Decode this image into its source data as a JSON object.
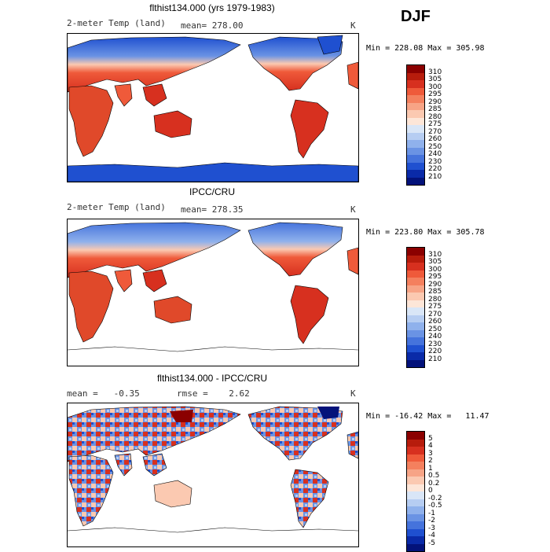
{
  "season": "DJF",
  "panels": [
    {
      "title": "flthist134.000 (yrs 1979-1983)",
      "left_label": "2-meter Temp (land)",
      "mid_label": "mean= 278.00",
      "units": "K",
      "minmax": "Min = 228.08 Max = 305.98"
    },
    {
      "title": "IPCC/CRU",
      "left_label": "2-meter Temp (land)",
      "mid_label": "mean= 278.35",
      "units": "K",
      "minmax": "Min = 223.80 Max = 305.78"
    },
    {
      "title": "flthist134.000 - IPCC/CRU",
      "left_label": "mean =   -0.35",
      "mid_label": "rmse =    2.62",
      "units": "K",
      "minmax": "Min = -16.42 Max =   11.47"
    }
  ],
  "temp_colorbar": {
    "labels": [
      "310",
      "305",
      "300",
      "295",
      "290",
      "285",
      "280",
      "275",
      "270",
      "260",
      "250",
      "240",
      "230",
      "220",
      "210"
    ],
    "colors": [
      "#8b0000",
      "#b71c0c",
      "#d7301f",
      "#ef5a3a",
      "#f4805e",
      "#f7a486",
      "#fbc9b1",
      "#fde6d8",
      "#d9e6f7",
      "#b6cdf2",
      "#8fb1ec",
      "#6a93e4",
      "#4573dc",
      "#1f50d0",
      "#0a2aa8",
      "#03127a"
    ]
  },
  "diff_colorbar": {
    "labels": [
      "5",
      "4",
      "3",
      "2",
      "1",
      "0.5",
      "0.2",
      "0",
      "-0.2",
      "-0.5",
      "-1",
      "-2",
      "-3",
      "-4",
      "-5"
    ],
    "colors": [
      "#8b0000",
      "#b71c0c",
      "#d7301f",
      "#ef5a3a",
      "#f4805e",
      "#f7a486",
      "#fbc9b1",
      "#fde6d8",
      "#d9e6f7",
      "#b6cdf2",
      "#8fb1ec",
      "#6a93e4",
      "#4573dc",
      "#1f50d0",
      "#0a2aa8",
      "#03127a"
    ]
  }
}
